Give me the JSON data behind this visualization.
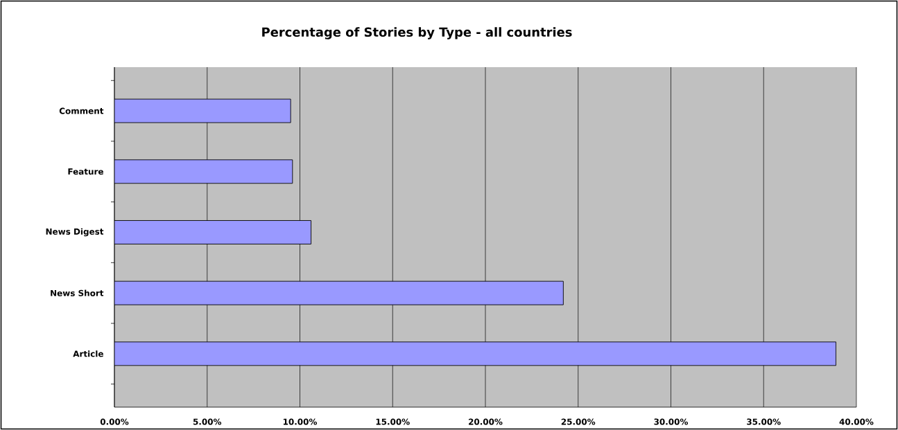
{
  "chart_data": {
    "type": "bar",
    "orientation": "horizontal",
    "title": "Percentage of Stories by Type - all countries",
    "categories": [
      "Comment",
      "Feature",
      "News Digest",
      "News Short",
      "Article"
    ],
    "values": [
      9.5,
      9.6,
      10.6,
      24.2,
      38.9
    ],
    "color": "#9999ff",
    "xlim": [
      0,
      40
    ],
    "xticks": [
      {
        "value": 0,
        "label": "0.00%"
      },
      {
        "value": 5,
        "label": "5.00%"
      },
      {
        "value": 10,
        "label": "10.00%"
      },
      {
        "value": 15,
        "label": "15.00%"
      },
      {
        "value": 20,
        "label": "20.00%"
      },
      {
        "value": 25,
        "label": "25.00%"
      },
      {
        "value": 30,
        "label": "30.00%"
      },
      {
        "value": 35,
        "label": "35.00%"
      },
      {
        "value": 40,
        "label": "40.00%"
      }
    ],
    "grid": "x"
  }
}
